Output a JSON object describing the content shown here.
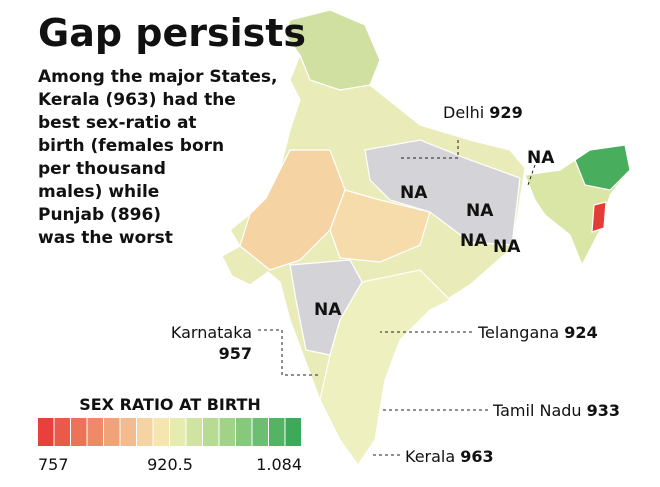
{
  "title": "Gap persists",
  "description": [
    "Among the major States,",
    "Kerala (963) had the",
    "best sex-ratio at",
    "birth (females born",
    "per thousand",
    "males) while",
    "Punjab (896)",
    "was the worst"
  ],
  "labels": [
    {
      "name": "Delhi",
      "value": 929
    },
    {
      "name": "Karnataka",
      "value": 957
    },
    {
      "name": "Telangana",
      "value": 924
    },
    {
      "name": "Tamil Nadu",
      "value": 933
    },
    {
      "name": "Kerala",
      "value": 963
    }
  ],
  "na_labels": [
    "NA",
    "NA",
    "NA",
    "NA",
    "NA",
    "NA"
  ],
  "legend": {
    "title": "SEX RATIO AT BIRTH",
    "ticks": [
      "757",
      "920.5",
      "1.084"
    ],
    "colors": [
      "#e8413c",
      "#ea5a48",
      "#ec7258",
      "#ee8a68",
      "#f0a27a",
      "#f3bb8e",
      "#f6d3a2",
      "#f5e6b0",
      "#e6ebb0",
      "#d0e3a2",
      "#b8db94",
      "#a0d288",
      "#86c87c",
      "#6dbe70",
      "#54b464",
      "#3caa58"
    ]
  }
}
